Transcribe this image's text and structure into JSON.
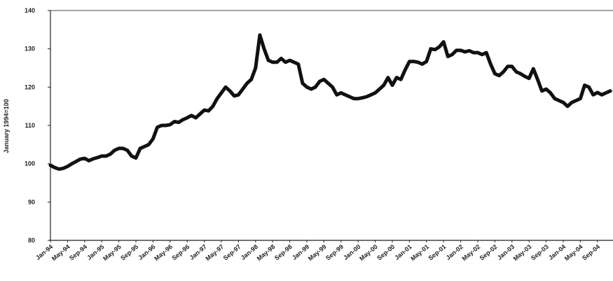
{
  "chart_data": {
    "type": "line",
    "y_label": "January 1994=100",
    "categories": [
      "Jan-94",
      null,
      null,
      null,
      "May-94",
      null,
      null,
      null,
      "Sep-94",
      null,
      null,
      null,
      "Jan-95",
      null,
      null,
      null,
      "May-95",
      null,
      null,
      null,
      "Sep-95",
      null,
      null,
      null,
      "Jan-96",
      null,
      null,
      null,
      "May-96",
      null,
      null,
      null,
      "Sep-96",
      null,
      null,
      null,
      "Jan-97",
      null,
      null,
      null,
      "May-97",
      null,
      null,
      null,
      "Sep-97",
      null,
      null,
      null,
      "Jan-98",
      null,
      null,
      null,
      "May-98",
      null,
      null,
      null,
      "Sep-98",
      null,
      null,
      null,
      "Jan-99",
      null,
      null,
      null,
      "May-99",
      null,
      null,
      null,
      "Sep-99",
      null,
      null,
      null,
      "Jan-00",
      null,
      null,
      null,
      "May-00",
      null,
      null,
      null,
      "Sep-00",
      null,
      null,
      null,
      "Jan-01",
      null,
      null,
      null,
      "May-01",
      null,
      null,
      null,
      "Sep-01",
      null,
      null,
      null,
      "Jan-02",
      null,
      null,
      null,
      "May-02",
      null,
      null,
      null,
      "Sep-02",
      null,
      null,
      null,
      "Jan-03",
      null,
      null,
      null,
      "May-03",
      null,
      null,
      null,
      "Sep-03",
      null,
      null,
      null,
      "Jan-04",
      null,
      null,
      null,
      "May-04",
      null,
      null,
      null,
      "Sep-04",
      null,
      null,
      null
    ],
    "series": [
      {
        "name": "Index",
        "color": "#111111",
        "values": [
          99.6,
          99,
          98.6,
          98.8,
          99.3,
          100,
          100.6,
          101.2,
          101.4,
          100.8,
          101.3,
          101.6,
          102,
          102,
          102.5,
          103.5,
          104,
          104,
          103.5,
          102,
          101.5,
          104,
          104.5,
          105,
          106.5,
          109.5,
          110,
          110,
          110.2,
          111,
          110.8,
          111.5,
          112,
          112.6,
          112,
          113,
          114,
          113.8,
          115,
          117,
          118.5,
          120,
          119,
          117.7,
          118,
          119.5,
          121,
          122,
          125,
          133.6,
          130,
          127,
          126.5,
          126.5,
          127.5,
          126.5,
          127,
          126.5,
          126,
          121,
          120,
          119.5,
          120,
          121.5,
          122,
          121,
          120,
          118,
          118.5,
          118,
          117.5,
          117,
          117,
          117.2,
          117.5,
          118,
          118.5,
          119.5,
          120.5,
          122.5,
          120.5,
          122.5,
          122,
          124.5,
          126.7,
          126.7,
          126.5,
          126,
          126.7,
          130,
          129.8,
          130.5,
          131.8,
          128,
          128.5,
          129.6,
          129.6,
          129.2,
          129.5,
          129,
          129,
          128.5,
          129,
          126,
          123.5,
          123,
          124,
          125.4,
          125.4,
          124,
          123.5,
          122.8,
          122.3,
          124.8,
          122,
          119,
          119.5,
          118.5,
          117,
          116.5,
          116,
          115,
          116,
          116.5,
          117,
          120.5,
          120,
          118,
          118.6,
          118,
          118.5,
          119
        ]
      }
    ],
    "ylim": [
      80,
      140
    ],
    "yticks": [
      80,
      90,
      100,
      110,
      120,
      130,
      140
    ],
    "grid": false
  }
}
